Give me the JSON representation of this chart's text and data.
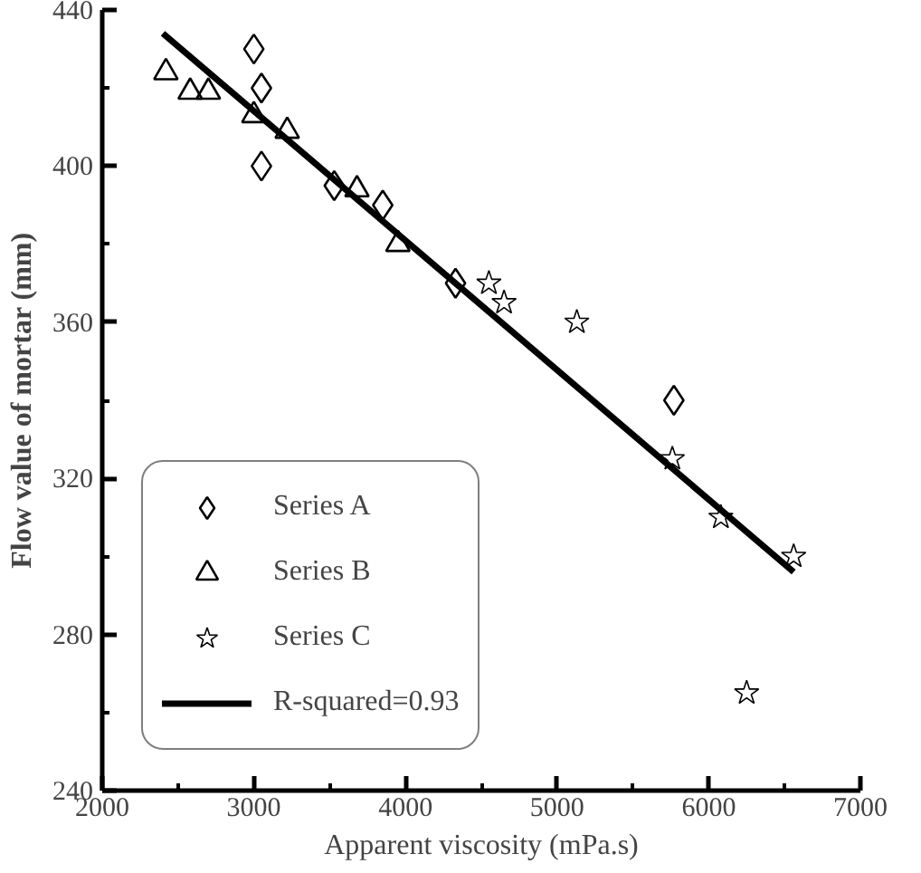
{
  "chart_data": {
    "type": "scatter",
    "xlabel": "Apparent viscosity (mPa.s)",
    "ylabel": "Flow value of mortar (mm)",
    "xlim": [
      2000,
      7000
    ],
    "xticks": [
      2000,
      3000,
      4000,
      5000,
      6000,
      7000
    ],
    "ylim": [
      240,
      440
    ],
    "yticks": [
      240,
      280,
      320,
      360,
      400,
      440
    ],
    "grid": false,
    "legend": "bottom left",
    "series": [
      {
        "name": "Series A",
        "color": "#000000",
        "marker": "diamond",
        "x": [
          3000,
          3050,
          3050,
          3530,
          3850,
          4330,
          5770
        ],
        "values": [
          430,
          420,
          400,
          395,
          390,
          370,
          340
        ]
      },
      {
        "name": "Series B",
        "color": "#000000",
        "marker": "triangle",
        "x": [
          2420,
          2580,
          2700,
          3000,
          3220,
          3680,
          3950
        ],
        "values": [
          424,
          419,
          419,
          413,
          409,
          394,
          380
        ]
      },
      {
        "name": "Series C",
        "color": "#000000",
        "marker": "star",
        "x": [
          4550,
          4650,
          5130,
          5760,
          6080,
          6560,
          6250
        ],
        "values": [
          370,
          365,
          360,
          325,
          310,
          300,
          265
        ]
      },
      {
        "name": "R-squared=0.93",
        "type": "line",
        "color": "#000000",
        "marker": "none",
        "line_style": "solid",
        "x": [
          2400,
          6560
        ],
        "values": [
          434,
          296
        ]
      }
    ]
  }
}
